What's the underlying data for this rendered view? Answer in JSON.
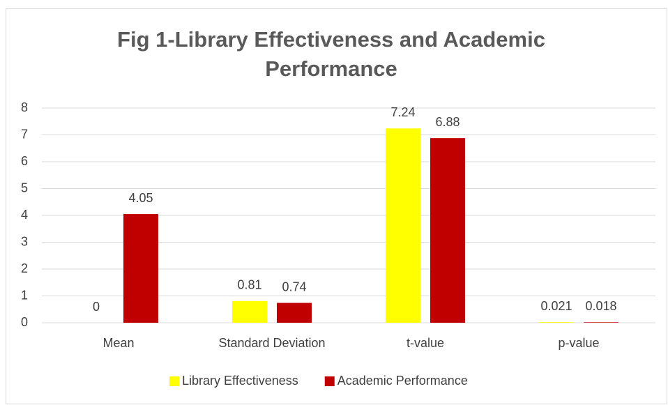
{
  "chart_data": {
    "type": "bar",
    "title": "Fig 1-Library Effectiveness and Academic Performance",
    "categories": [
      "Mean",
      "Standard Deviation",
      "t-value",
      "p-value"
    ],
    "series": [
      {
        "name": "Library Effectiveness",
        "color": "#ffff00",
        "values": [
          0,
          0.81,
          7.24,
          0.021
        ]
      },
      {
        "name": "Academic Performance",
        "color": "#c00000",
        "values": [
          4.05,
          0.74,
          6.88,
          0.018
        ]
      }
    ],
    "ylim": [
      0,
      8
    ],
    "yticks": [
      0,
      1,
      2,
      3,
      4,
      5,
      6,
      7,
      8
    ],
    "grid": true,
    "legend": "bottom"
  }
}
